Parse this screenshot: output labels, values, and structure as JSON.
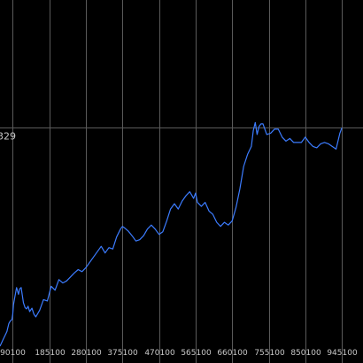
{
  "chart_data": {
    "type": "line",
    "title": "",
    "xlabel": "",
    "ylabel": "",
    "x_ticks": [
      90100,
      185100,
      280100,
      375100,
      470100,
      565100,
      660100,
      755100,
      850100,
      945100
    ],
    "x_tick_labels": [
      "90100",
      "185100",
      "280100",
      "375100",
      "470100",
      "565100",
      "660100",
      "755100",
      "850100",
      "945100"
    ],
    "xlim": [
      57000,
      1000000
    ],
    "ylim": [
      0,
      520
    ],
    "reference_line": {
      "value": 329,
      "label": "329"
    },
    "grid": "vertical",
    "line_color": "#3c7cff",
    "background_color": "#000000",
    "grid_color": "#5a5a5a",
    "series": [
      {
        "x": [
          57000,
          65000,
          75000,
          80000,
          84000,
          88000,
          90100,
          92000,
          95000,
          100000,
          105000,
          108000,
          112000,
          118000,
          122000,
          126000,
          130000,
          134000,
          140000,
          145000,
          150000,
          160000,
          170000,
          180000,
          190000,
          200000,
          210000,
          220000,
          230000,
          240000,
          250000,
          260000,
          270000,
          280000,
          290000,
          300000,
          310000,
          320000,
          330000,
          340000,
          350000,
          360000,
          370000,
          375100,
          380000,
          390000,
          400000,
          410000,
          420000,
          430000,
          440000,
          450000,
          460000,
          470000,
          480000,
          490000,
          500000,
          510000,
          520000,
          530000,
          540000,
          550000,
          560000,
          565000,
          570000,
          580000,
          590000,
          600000,
          610000,
          620000,
          630000,
          640000,
          650000,
          660000,
          670000,
          680000,
          690000,
          700000,
          710000,
          715000,
          720000,
          725000,
          730000,
          735000,
          740000,
          750000,
          760000,
          770000,
          780000,
          790000,
          800000,
          810000,
          820000,
          830000,
          840000,
          850000,
          860000,
          870000,
          880000,
          890000,
          900000,
          910000,
          920000,
          930000,
          940000,
          945000
        ],
        "values": [
          0,
          10,
          22,
          34,
          38,
          40,
          48,
          62,
          72,
          88,
          78,
          86,
          88,
          65,
          58,
          56,
          60,
          52,
          57,
          48,
          44,
          54,
          70,
          68,
          90,
          84,
          100,
          95,
          98,
          104,
          110,
          115,
          112,
          118,
          126,
          134,
          142,
          150,
          140,
          148,
          146,
          164,
          176,
          180,
          178,
          173,
          166,
          158,
          160,
          166,
          176,
          182,
          176,
          168,
          172,
          188,
          206,
          214,
          206,
          218,
          226,
          232,
          222,
          230,
          216,
          210,
          216,
          203,
          198,
          186,
          180,
          186,
          182,
          188,
          208,
          236,
          270,
          288,
          300,
          324,
          336,
          318,
          330,
          334,
          334,
          318,
          320,
          326,
          326,
          314,
          308,
          312,
          306,
          306,
          306,
          314,
          306,
          300,
          298,
          304,
          306,
          304,
          300,
          296,
          320,
          328
        ]
      }
    ]
  }
}
